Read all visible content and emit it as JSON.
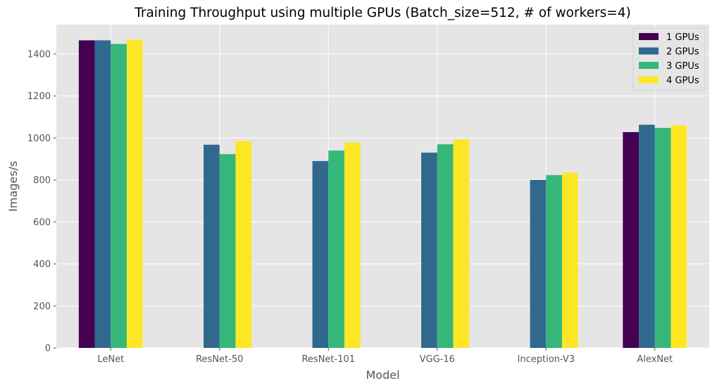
{
  "chart_data": {
    "type": "bar",
    "title": "Training Throughput using multiple GPUs (Batch_size=512, # of workers=4)",
    "xlabel": "Model",
    "ylabel": "Images/s",
    "ylim": [
      0,
      1540
    ],
    "yticks": [
      0,
      200,
      400,
      600,
      800,
      1000,
      1200,
      1400
    ],
    "grid": true,
    "legend_position": "top-right",
    "categories": [
      "LeNet",
      "ResNet-50",
      "ResNet-101",
      "VGG-16",
      "Inception-V3",
      "AlexNet"
    ],
    "series": [
      {
        "name": "1 GPUs",
        "color": "#440154",
        "values": [
          1465,
          null,
          null,
          null,
          null,
          1028
        ]
      },
      {
        "name": "2 GPUs",
        "color": "#31688e",
        "values": [
          1465,
          968,
          890,
          930,
          800,
          1063
        ]
      },
      {
        "name": "3 GPUs",
        "color": "#35b779",
        "values": [
          1448,
          923,
          940,
          970,
          823,
          1048
        ]
      },
      {
        "name": "4 GPUs",
        "color": "#fde725",
        "values": [
          1468,
          985,
          978,
          993,
          835,
          1060
        ]
      }
    ],
    "background_color": "#e5e5e5",
    "grid_color": "#ffffff"
  }
}
